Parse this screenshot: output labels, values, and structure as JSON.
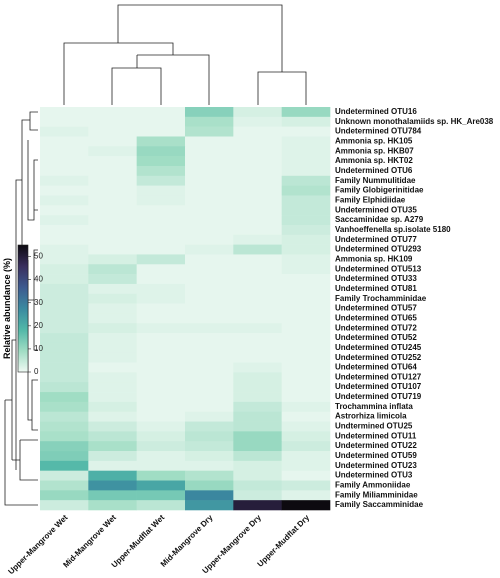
{
  "chart_data": {
    "type": "heatmap",
    "colorbar_label": "Relative abundance (%)",
    "columns": [
      "Upper-Mangrove Wet",
      "Mid-Mangrove Wet",
      "Upper-Mudflat Wet",
      "Mid-Mangrove Dry",
      "Upper-Mangrove Dry",
      "Upper-Mudflat Dry"
    ],
    "rows": [
      "Undetermined OTU16",
      "Unknown monothalamiids sp. HK_Are038",
      "Undetermined OTU784",
      "Ammonia sp. HK105",
      "Ammonia sp. HKB07",
      "Ammonia sp. HKT02",
      "Undetermined OTU6",
      "Family Nummulitidae",
      "Family Globigerinitidae",
      "Family Elphidiidae",
      "Undetermined OTU35",
      "Saccaminidae sp. A279",
      "Vanhoeffenella sp.isolate 5180",
      "Undetermined OTU77",
      "Undetermined OTU293",
      "Ammonia sp. HK109",
      "Undetermined OTU513",
      "Undetermined OTU33",
      "Undetermined OTU81",
      "Family Trochamminidae",
      "Undetermined OTU57",
      "Undetermined OTU65",
      "Undetermined OTU72",
      "Undetermined OTU52",
      "Undetermined OTU245",
      "Undetermined OTU252",
      "Undetermined OTU64",
      "Undetermined OTU127",
      "Undetermined OTU107",
      "Undetermined OTU719",
      "Trochammina inflata",
      "Astrorhiza limicola",
      "Undtermined OTU25",
      "Undetermined OTU11",
      "Undetermined OTU22",
      "Undetermined OTU59",
      "Undetermined OTU23",
      "Undetermined OTU3",
      "Family Ammoniidae",
      "Family Miliamminidae",
      "Family Saccamminidae"
    ],
    "values": [
      [
        1,
        1,
        1,
        12,
        3,
        10
      ],
      [
        1,
        1,
        1,
        8,
        2,
        3
      ],
      [
        2,
        1,
        1,
        7,
        1,
        1
      ],
      [
        1,
        1,
        8,
        1,
        1,
        2
      ],
      [
        1,
        2,
        10,
        1,
        1,
        2
      ],
      [
        1,
        1,
        9,
        1,
        1,
        2
      ],
      [
        1,
        1,
        7,
        1,
        1,
        2
      ],
      [
        2,
        1,
        5,
        1,
        1,
        6
      ],
      [
        1,
        1,
        2,
        1,
        1,
        7
      ],
      [
        2,
        1,
        2,
        1,
        1,
        5
      ],
      [
        1,
        1,
        1,
        1,
        1,
        5
      ],
      [
        2,
        1,
        1,
        1,
        1,
        5
      ],
      [
        1,
        1,
        1,
        1,
        1,
        4
      ],
      [
        1,
        1,
        1,
        1,
        2,
        3
      ],
      [
        2,
        1,
        1,
        2,
        6,
        3
      ],
      [
        2,
        3,
        5,
        1,
        1,
        2
      ],
      [
        3,
        6,
        1,
        1,
        1,
        2
      ],
      [
        3,
        5,
        1,
        1,
        1,
        1
      ],
      [
        4,
        2,
        2,
        1,
        1,
        1
      ],
      [
        4,
        3,
        2,
        1,
        1,
        1
      ],
      [
        4,
        2,
        1,
        1,
        1,
        1
      ],
      [
        4,
        2,
        1,
        1,
        1,
        1
      ],
      [
        4,
        3,
        2,
        2,
        2,
        1
      ],
      [
        5,
        2,
        1,
        1,
        1,
        1
      ],
      [
        5,
        2,
        1,
        1,
        1,
        1
      ],
      [
        5,
        2,
        1,
        1,
        1,
        1
      ],
      [
        5,
        1,
        1,
        1,
        2,
        1
      ],
      [
        5,
        2,
        1,
        1,
        3,
        1
      ],
      [
        6,
        2,
        1,
        1,
        3,
        1
      ],
      [
        9,
        2,
        1,
        1,
        3,
        1
      ],
      [
        8,
        3,
        1,
        1,
        5,
        2
      ],
      [
        6,
        2,
        1,
        2,
        6,
        1
      ],
      [
        7,
        4,
        2,
        5,
        6,
        2
      ],
      [
        8,
        6,
        3,
        6,
        10,
        3
      ],
      [
        12,
        8,
        4,
        5,
        10,
        4
      ],
      [
        13,
        4,
        2,
        3,
        6,
        2
      ],
      [
        18,
        2,
        2,
        2,
        3,
        2
      ],
      [
        4,
        20,
        9,
        7,
        3,
        1
      ],
      [
        7,
        26,
        22,
        10,
        5,
        4
      ],
      [
        10,
        14,
        14,
        28,
        4,
        2
      ],
      [
        4,
        8,
        6,
        25,
        50,
        55
      ]
    ],
    "colorscale": [
      "#eff9f3",
      "#9fdcc3",
      "#52b8a8",
      "#3b8aa0",
      "#3d5a8f",
      "#3a2f5e",
      "#0d0a10"
    ],
    "zlim": [
      0,
      55
    ],
    "zticks": [
      0,
      10,
      20,
      30,
      40,
      50
    ]
  }
}
